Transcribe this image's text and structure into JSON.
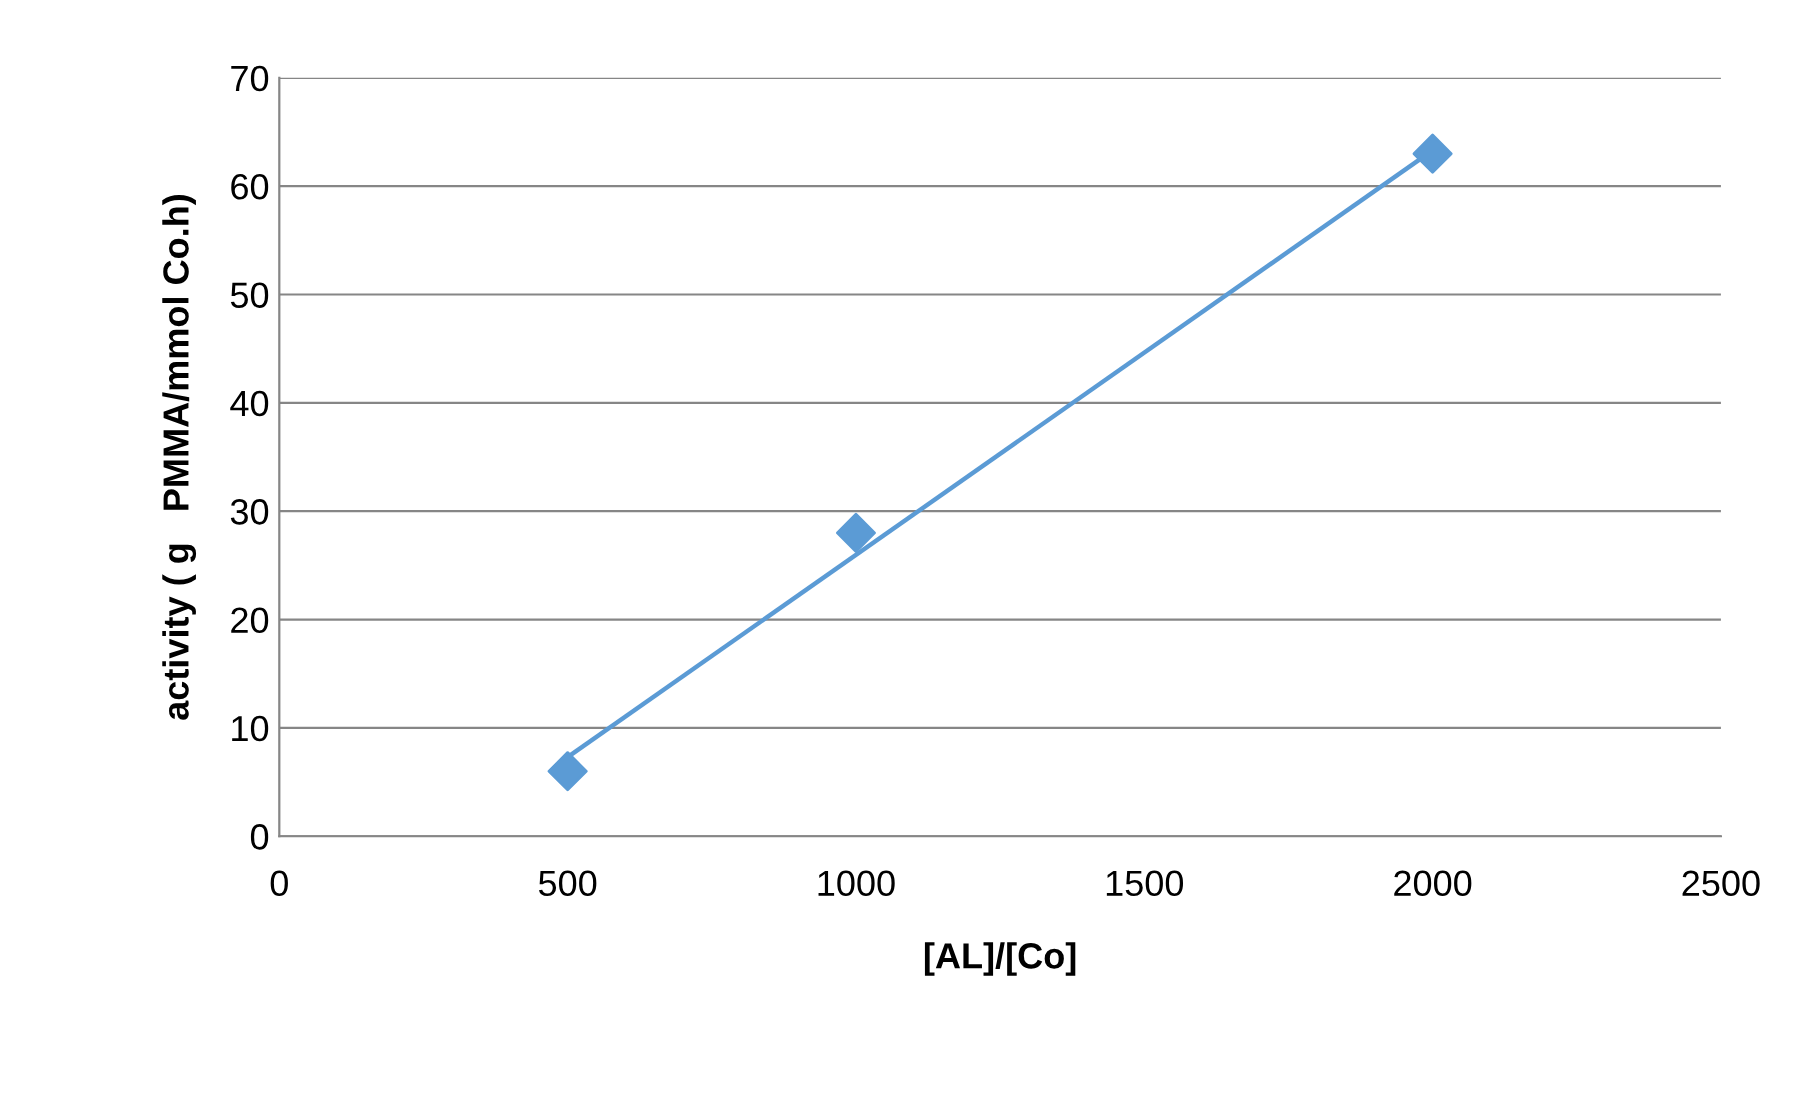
{
  "chart_data": {
    "type": "scatter",
    "xlabel": "[AL]/[Co]",
    "ylabel": "activity ( g   PMMA/mmol Co.h)",
    "series": [
      {
        "color": "#5b9bd5",
        "x": [
          500,
          1000,
          2000
        ],
        "values": [
          6,
          28,
          63
        ],
        "marker": "diamond"
      },
      {
        "type": "line",
        "color": "#5b9bd5",
        "x": [
          500,
          2000
        ],
        "values": [
          7.3,
          63.3
        ],
        "marker": "none"
      }
    ],
    "xlim": [
      0,
      2500
    ],
    "xticks": [
      0,
      500,
      1000,
      1500,
      2000,
      2500
    ],
    "ylim": [
      0,
      70
    ],
    "yticks": [
      0,
      10,
      20,
      30,
      40,
      50,
      60,
      70
    ],
    "grid": "y"
  }
}
